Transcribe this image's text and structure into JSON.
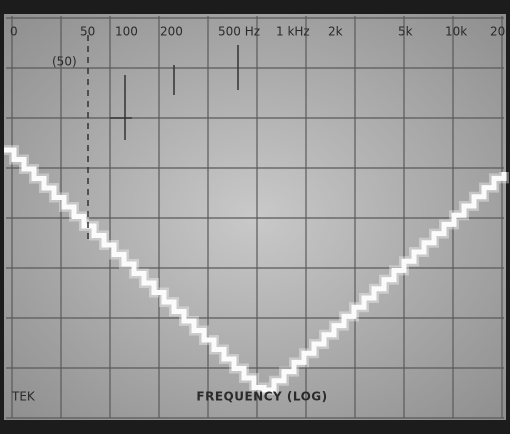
{
  "scale_labels": [
    "0",
    "50",
    "100",
    "200",
    "500 Hz",
    "1 kHz",
    "2k",
    "5k",
    "10k",
    "20"
  ],
  "marker_label": "(50)",
  "axis_label": "FREQUENCY (LOG)",
  "brand": "TEK"
}
